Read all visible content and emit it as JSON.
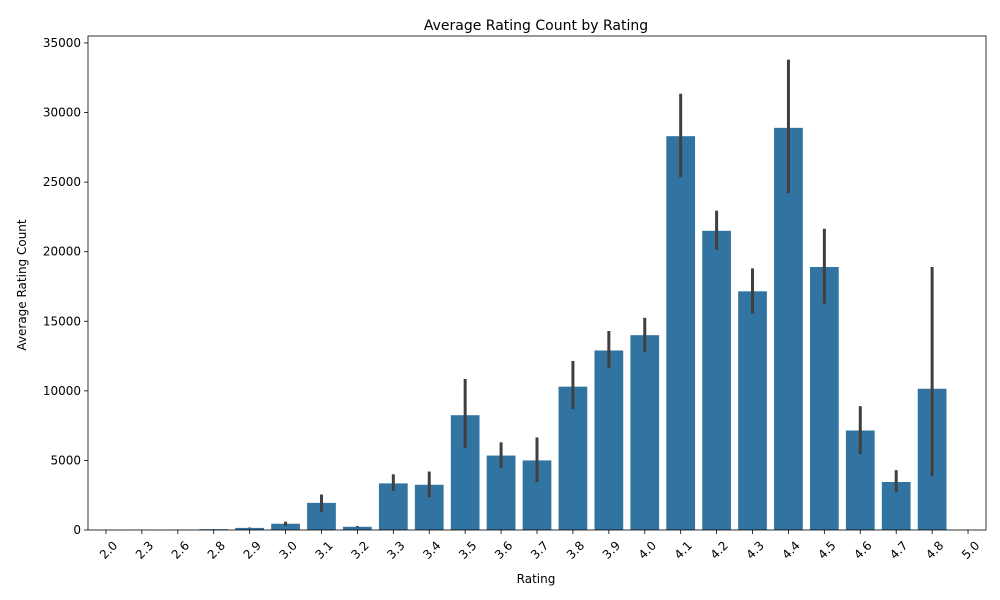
{
  "chart_data": {
    "type": "bar",
    "title": "Average Rating Count by Rating",
    "xlabel": "Rating",
    "ylabel": "Average Rating Count",
    "ylim": [
      0,
      35500
    ],
    "yticks": [
      0,
      5000,
      10000,
      15000,
      20000,
      25000,
      30000,
      35000
    ],
    "grid": false,
    "bar_color": "#3274a1",
    "errorbar_color": "#3f3f3f",
    "categories": [
      "2.0",
      "2.3",
      "2.6",
      "2.8",
      "2.9",
      "3.0",
      "3.1",
      "3.2",
      "3.3",
      "3.4",
      "3.5",
      "3.6",
      "3.7",
      "3.8",
      "3.9",
      "4.0",
      "4.1",
      "4.2",
      "4.3",
      "4.4",
      "4.5",
      "4.6",
      "4.7",
      "4.8",
      "5.0"
    ],
    "values": [
      5,
      10,
      15,
      60,
      150,
      450,
      1950,
      230,
      3350,
      3250,
      8250,
      5350,
      5000,
      10300,
      12900,
      14000,
      28300,
      21500,
      17150,
      28900,
      18900,
      7150,
      3450,
      10150,
      0
    ],
    "error_low": [
      5,
      10,
      15,
      50,
      120,
      300,
      1300,
      180,
      2800,
      2350,
      5900,
      4450,
      3450,
      8700,
      11650,
      12800,
      25350,
      20150,
      15550,
      24200,
      16250,
      5450,
      2700,
      3850,
      0
    ],
    "error_high": [
      5,
      10,
      15,
      70,
      180,
      600,
      2550,
      280,
      4000,
      4200,
      10850,
      6300,
      6650,
      12150,
      14300,
      15250,
      31350,
      22950,
      18800,
      33800,
      21650,
      8900,
      4300,
      18900,
      0
    ]
  }
}
